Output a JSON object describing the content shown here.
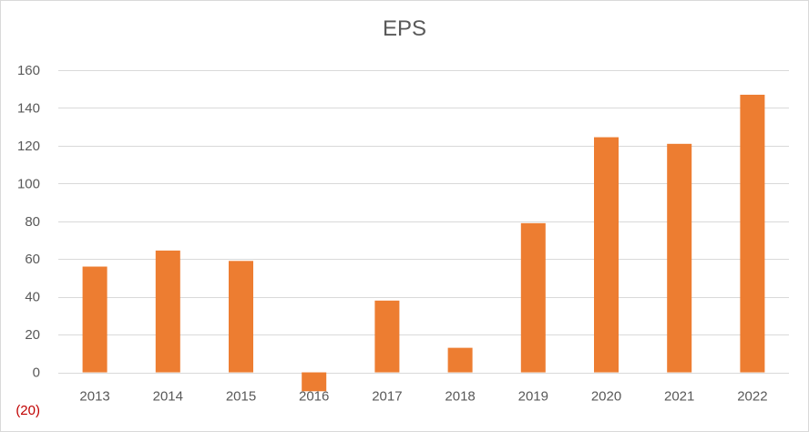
{
  "chart_data": {
    "type": "bar",
    "title": "EPS",
    "xlabel": "",
    "ylabel": "",
    "categories": [
      "2013",
      "2014",
      "2015",
      "2016",
      "2017",
      "2018",
      "2019",
      "2020",
      "2021",
      "2022"
    ],
    "values": [
      56,
      64.5,
      59,
      -10,
      38,
      13,
      79,
      124.5,
      121,
      147
    ],
    "ylim": [
      -20,
      160
    ],
    "yticks": [
      160,
      140,
      120,
      100,
      80,
      60,
      40,
      20,
      0,
      -20
    ],
    "ytick_labels": [
      "160",
      "140",
      "120",
      "100",
      "80",
      "60",
      "40",
      "20",
      "0",
      "(20)"
    ],
    "grid": true,
    "legend": "none",
    "colors": {
      "bar": "#ED7D31",
      "grid": "#D9D9D9",
      "axis_text": "#595959",
      "negative_tick": "#C00000"
    }
  }
}
